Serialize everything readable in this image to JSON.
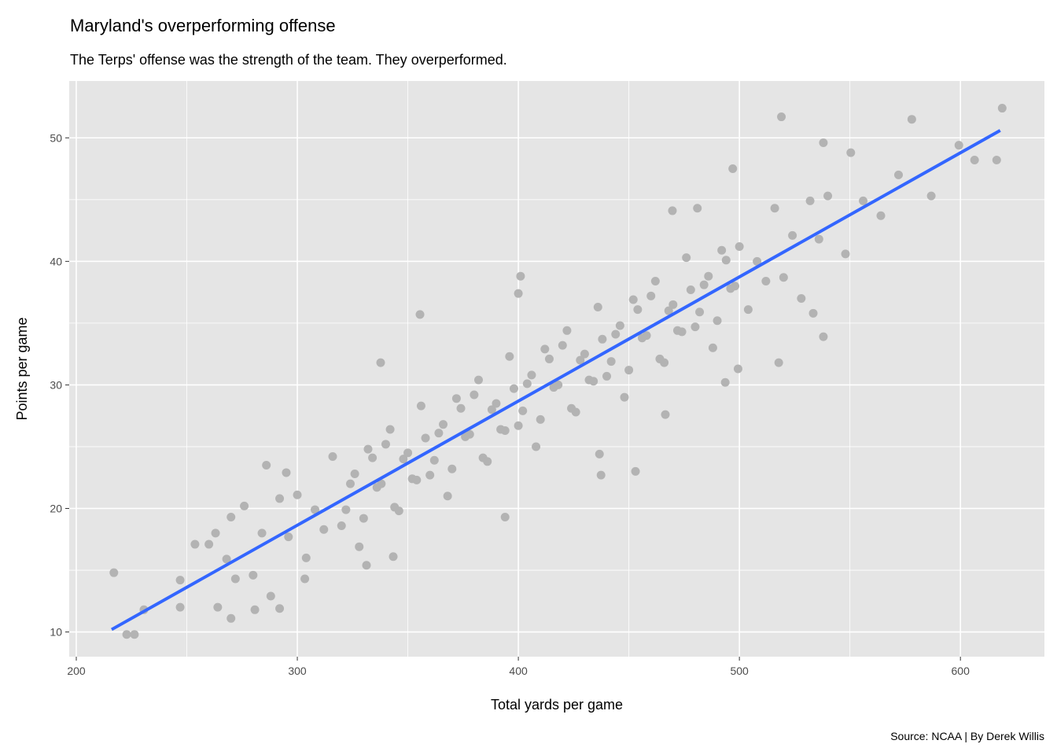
{
  "chart_data": {
    "type": "scatter",
    "title": "Maryland's overperforming offense",
    "subtitle": "The Terps' offense was the strength of the team. They overperformed.",
    "caption": "Source: NCAA | By Derek Willis",
    "xlabel": "Total yards per game",
    "ylabel": "Points per game",
    "xlim": [
      196.8,
      638
    ],
    "ylim": [
      8,
      54.6
    ],
    "x_ticks": [
      200,
      300,
      400,
      500,
      600
    ],
    "y_ticks": [
      10,
      20,
      30,
      40,
      50
    ],
    "grid": true,
    "legend": "none",
    "colors": {
      "points": "#b3b3b3",
      "fit_line": "#3366ff",
      "panel": "#e5e5e5",
      "grid": "#ffffff"
    },
    "fit_line": {
      "type": "linear",
      "x": [
        216,
        618
      ],
      "y": [
        10.2,
        50.6
      ]
    },
    "points": [
      [
        217,
        14.8
      ],
      [
        222.8,
        9.8
      ],
      [
        226.3,
        9.8
      ],
      [
        230.6,
        11.8
      ],
      [
        247,
        12
      ],
      [
        247,
        14.2
      ],
      [
        253.7,
        17.1
      ],
      [
        263,
        18
      ],
      [
        270,
        19.3
      ],
      [
        270,
        11.1
      ],
      [
        286,
        23.5
      ],
      [
        292,
        11.9
      ],
      [
        295,
        22.9
      ],
      [
        337.7,
        31.8
      ],
      [
        355.5,
        35.7
      ],
      [
        401,
        38.8
      ],
      [
        400,
        37.4
      ],
      [
        453,
        23
      ],
      [
        466.5,
        27.6
      ],
      [
        469.7,
        44.1
      ],
      [
        481,
        44.3
      ],
      [
        497,
        47.5
      ],
      [
        519,
        51.7
      ],
      [
        538,
        49.6
      ],
      [
        550.4,
        48.8
      ],
      [
        578,
        51.5
      ],
      [
        599.3,
        49.4
      ],
      [
        606.4,
        48.2
      ],
      [
        618.9,
        52.4
      ],
      [
        616.4,
        48.2
      ],
      [
        586.8,
        45.3
      ],
      [
        538,
        33.9
      ],
      [
        533.4,
        35.8
      ],
      [
        517.8,
        31.8
      ],
      [
        499.4,
        31.3
      ],
      [
        493.6,
        30.2
      ],
      [
        437.4,
        22.7
      ],
      [
        436.7,
        24.4
      ],
      [
        394,
        19.3
      ],
      [
        331.3,
        15.4
      ],
      [
        343.4,
        16.1
      ],
      [
        303.4,
        14.3
      ],
      [
        280.8,
        11.8
      ],
      [
        260,
        17.1
      ],
      [
        264,
        12.0
      ],
      [
        268,
        15.9
      ],
      [
        272,
        14.3
      ],
      [
        276,
        20.2
      ],
      [
        280,
        14.6
      ],
      [
        284,
        18.0
      ],
      [
        288,
        12.9
      ],
      [
        292,
        20.8
      ],
      [
        296,
        17.7
      ],
      [
        300,
        21.1
      ],
      [
        304,
        16.0
      ],
      [
        308,
        19.9
      ],
      [
        312,
        18.3
      ],
      [
        316,
        24.2
      ],
      [
        320,
        18.6
      ],
      [
        324,
        22.0
      ],
      [
        328,
        16.9
      ],
      [
        332,
        24.8
      ],
      [
        336,
        21.7
      ],
      [
        340,
        25.2
      ],
      [
        344,
        20.1
      ],
      [
        348,
        24.0
      ],
      [
        352,
        22.4
      ],
      [
        356,
        28.3
      ],
      [
        360,
        22.7
      ],
      [
        364,
        26.1
      ],
      [
        368,
        21.0
      ],
      [
        372,
        28.9
      ],
      [
        376,
        25.8
      ],
      [
        380,
        29.2
      ],
      [
        384,
        24.1
      ],
      [
        388,
        28.0
      ],
      [
        392,
        26.4
      ],
      [
        396,
        32.3
      ],
      [
        400,
        26.7
      ],
      [
        404,
        30.1
      ],
      [
        408,
        25.0
      ],
      [
        412,
        32.9
      ],
      [
        416,
        29.8
      ],
      [
        420,
        33.2
      ],
      [
        424,
        28.1
      ],
      [
        428,
        32.0
      ],
      [
        432,
        30.4
      ],
      [
        436,
        36.3
      ],
      [
        440,
        30.7
      ],
      [
        444,
        34.1
      ],
      [
        448,
        29.0
      ],
      [
        452,
        36.9
      ],
      [
        456,
        33.8
      ],
      [
        460,
        37.2
      ],
      [
        464,
        32.1
      ],
      [
        468,
        36.0
      ],
      [
        472,
        34.4
      ],
      [
        476,
        40.3
      ],
      [
        480,
        34.7
      ],
      [
        484,
        38.1
      ],
      [
        488,
        33.0
      ],
      [
        492,
        40.9
      ],
      [
        496,
        37.8
      ],
      [
        500,
        41.2
      ],
      [
        504,
        36.1
      ],
      [
        508,
        40.0
      ],
      [
        512,
        38.4
      ],
      [
        516,
        44.3
      ],
      [
        520,
        38.7
      ],
      [
        524,
        42.1
      ],
      [
        528,
        37.0
      ],
      [
        532,
        44.9
      ],
      [
        536,
        41.8
      ],
      [
        540,
        45.3
      ],
      [
        548,
        40.6
      ],
      [
        556,
        44.9
      ],
      [
        564,
        43.7
      ],
      [
        572,
        47.0
      ],
      [
        322,
        19.9
      ],
      [
        326,
        22.8
      ],
      [
        330,
        19.2
      ],
      [
        334,
        24.1
      ],
      [
        338,
        22.0
      ],
      [
        342,
        26.4
      ],
      [
        346,
        19.8
      ],
      [
        350,
        24.5
      ],
      [
        354,
        22.3
      ],
      [
        358,
        25.7
      ],
      [
        362,
        23.9
      ],
      [
        366,
        26.8
      ],
      [
        370,
        23.2
      ],
      [
        374,
        28.1
      ],
      [
        378,
        26.0
      ],
      [
        382,
        30.4
      ],
      [
        386,
        23.8
      ],
      [
        390,
        28.5
      ],
      [
        394,
        26.3
      ],
      [
        398,
        29.7
      ],
      [
        402,
        27.9
      ],
      [
        406,
        30.8
      ],
      [
        410,
        27.2
      ],
      [
        414,
        32.1
      ],
      [
        418,
        30.0
      ],
      [
        422,
        34.4
      ],
      [
        426,
        27.8
      ],
      [
        430,
        32.5
      ],
      [
        434,
        30.3
      ],
      [
        438,
        33.7
      ],
      [
        442,
        31.9
      ],
      [
        446,
        34.8
      ],
      [
        450,
        31.2
      ],
      [
        454,
        36.1
      ],
      [
        458,
        34.0
      ],
      [
        462,
        38.4
      ],
      [
        466,
        31.8
      ],
      [
        470,
        36.5
      ],
      [
        474,
        34.3
      ],
      [
        478,
        37.7
      ],
      [
        482,
        35.9
      ],
      [
        486,
        38.8
      ],
      [
        490,
        35.2
      ],
      [
        494,
        40.1
      ],
      [
        498,
        38.0
      ]
    ]
  }
}
